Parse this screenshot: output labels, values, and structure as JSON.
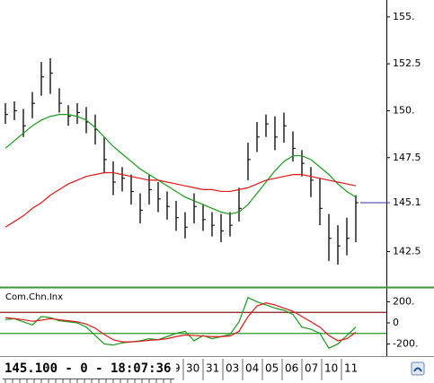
{
  "chart_data": [
    {
      "type": "ohlc",
      "high": [
        150.4,
        150.5,
        150.1,
        151.0,
        152.6,
        152.8,
        151.2,
        150.3,
        150.4,
        150.2,
        149.8,
        148.6,
        147.3,
        147.0,
        146.6,
        145.6,
        146.6,
        146.2,
        145.7,
        145.2,
        144.6,
        145.6,
        145.0,
        144.6,
        144.5,
        144.6,
        145.9,
        148.3,
        149.4,
        149.8,
        149.7,
        149.9,
        148.9,
        147.9,
        147.0,
        146.4,
        144.5,
        143.9,
        144.3,
        145.5
      ],
      "low": [
        149.3,
        149.5,
        148.6,
        149.6,
        150.8,
        150.9,
        149.9,
        149.2,
        149.3,
        148.8,
        148.2,
        146.7,
        145.5,
        145.7,
        145.0,
        144.0,
        145.0,
        144.6,
        144.2,
        143.6,
        143.2,
        144.0,
        143.6,
        143.3,
        143.0,
        143.3,
        144.1,
        146.3,
        147.8,
        148.6,
        147.9,
        148.3,
        147.3,
        146.5,
        145.4,
        143.9,
        142.0,
        141.8,
        142.3,
        143.0
      ],
      "close": [
        149.8,
        150.0,
        149.2,
        150.4,
        151.8,
        152.0,
        150.4,
        149.7,
        149.9,
        149.4,
        149.0,
        147.4,
        146.2,
        146.4,
        145.7,
        144.7,
        145.8,
        145.3,
        144.9,
        144.3,
        143.8,
        144.9,
        144.2,
        143.9,
        143.6,
        143.9,
        144.8,
        147.4,
        148.6,
        149.3,
        148.6,
        149.2,
        148.0,
        147.2,
        146.3,
        144.8,
        143.2,
        142.8,
        143.2,
        145.1
      ],
      "color": "#000000",
      "series": [
        {
          "color": "#1a9a1a",
          "values": [
            148.0,
            148.4,
            148.8,
            149.2,
            149.5,
            149.7,
            149.8,
            149.8,
            149.7,
            149.5,
            149.1,
            148.6,
            148.1,
            147.7,
            147.3,
            146.9,
            146.6,
            146.3,
            146.0,
            145.7,
            145.4,
            145.2,
            145.0,
            144.8,
            144.6,
            144.5,
            144.6,
            145.0,
            145.6,
            146.2,
            146.8,
            147.3,
            147.6,
            147.6,
            147.4,
            147.0,
            146.6,
            146.1,
            145.7,
            145.4
          ]
        },
        {
          "color": "#e01818",
          "values": [
            143.8,
            144.1,
            144.4,
            144.8,
            145.1,
            145.5,
            145.8,
            146.1,
            146.3,
            146.5,
            146.6,
            146.7,
            146.7,
            146.6,
            146.5,
            146.4,
            146.3,
            146.3,
            146.2,
            146.1,
            146.0,
            145.9,
            145.8,
            145.8,
            145.7,
            145.7,
            145.8,
            145.9,
            146.1,
            146.3,
            146.4,
            146.5,
            146.6,
            146.6,
            146.5,
            146.4,
            146.3,
            146.2,
            146.1,
            146.0
          ]
        }
      ],
      "ylim": [
        140.8,
        155.9
      ],
      "yticks": [
        {
          "value": 155,
          "label": "155."
        },
        152.5,
        {
          "value": 150,
          "label": "150."
        },
        147.5,
        142.5
      ],
      "last_price": 145.1,
      "last_price_color": "#3030a0"
    },
    {
      "type": "line",
      "title": "Com.Chn.Inx",
      "series": [
        {
          "color": "#1a9a1a",
          "values": [
            30,
            40,
            10,
            -20,
            60,
            50,
            20,
            10,
            0,
            -40,
            -120,
            -200,
            -210,
            -190,
            -180,
            -170,
            -150,
            -160,
            -130,
            -100,
            -80,
            -170,
            -120,
            -150,
            -130,
            -110,
            10,
            240,
            200,
            170,
            140,
            120,
            80,
            -40,
            -60,
            -100,
            -240,
            -200,
            -120,
            -40
          ]
        },
        {
          "color": "#e01818",
          "values": [
            50,
            40,
            30,
            15,
            25,
            40,
            30,
            20,
            10,
            -10,
            -50,
            -110,
            -160,
            -180,
            -180,
            -175,
            -165,
            -160,
            -150,
            -130,
            -115,
            -120,
            -125,
            -130,
            -130,
            -125,
            -80,
            60,
            160,
            190,
            170,
            140,
            110,
            60,
            10,
            -40,
            -120,
            -170,
            -150,
            -90
          ]
        }
      ],
      "levels": [
        {
          "value": 100,
          "color": "#8b1a1a"
        },
        {
          "value": -100,
          "color": "#2a9a2a"
        }
      ],
      "ylim": [
        -298,
        323
      ],
      "yticks": [
        {
          "value": 200,
          "label": "200."
        },
        0,
        {
          "value": -200,
          "label": "-200."
        }
      ]
    }
  ],
  "status_bar": {
    "text": "145.100 - 0 - 18:07:36",
    "date_labels": [
      "9",
      "30",
      "31",
      "03",
      "04",
      "05",
      "06",
      "07",
      "10",
      "11"
    ]
  }
}
